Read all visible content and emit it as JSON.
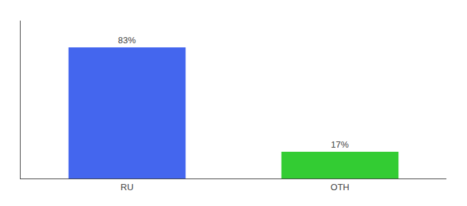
{
  "chart_data": {
    "type": "bar",
    "categories": [
      "RU",
      "OTH"
    ],
    "values": [
      83,
      17
    ],
    "value_labels": [
      "83%",
      "17%"
    ],
    "colors": [
      "#4466ee",
      "#33cc33"
    ],
    "ylim": [
      0,
      100
    ],
    "grid": false,
    "tick_labels": "x",
    "data_labels": true
  }
}
